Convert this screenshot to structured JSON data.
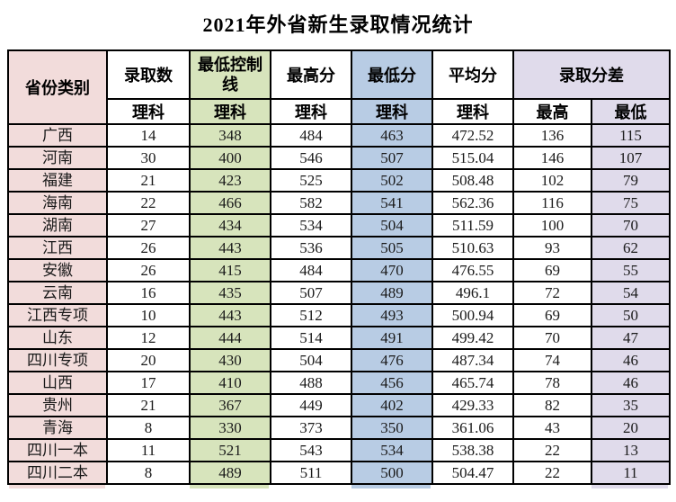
{
  "title": "2021年外省新生录取情况统计",
  "colors": {
    "province_column": "#f2dcdb",
    "control_line_column": "#d7e4bc",
    "lowest_score_column": "#b8cce4",
    "score_diff_column": "#e0dbeb",
    "grid_border": "#000000"
  },
  "table": {
    "header": {
      "province": "省份类别",
      "admitted": "录取数",
      "control_line": "最低控制线",
      "highest": "最高分",
      "lowest": "最低分",
      "average": "平均分",
      "score_diff": "录取分差",
      "sub_science": "理科",
      "sub_high": "最高",
      "sub_low": "最低"
    },
    "rows": [
      {
        "province": "广西",
        "admitted": "14",
        "control_line": "348",
        "highest": "484",
        "lowest": "463",
        "average": "472.52",
        "diff_high": "136",
        "diff_low": "115"
      },
      {
        "province": "河南",
        "admitted": "30",
        "control_line": "400",
        "highest": "546",
        "lowest": "507",
        "average": "515.04",
        "diff_high": "146",
        "diff_low": "107"
      },
      {
        "province": "福建",
        "admitted": "21",
        "control_line": "423",
        "highest": "525",
        "lowest": "502",
        "average": "508.48",
        "diff_high": "102",
        "diff_low": "79"
      },
      {
        "province": "海南",
        "admitted": "22",
        "control_line": "466",
        "highest": "582",
        "lowest": "541",
        "average": "562.36",
        "diff_high": "116",
        "diff_low": "75"
      },
      {
        "province": "湖南",
        "admitted": "27",
        "control_line": "434",
        "highest": "534",
        "lowest": "504",
        "average": "511.59",
        "diff_high": "100",
        "diff_low": "70"
      },
      {
        "province": "江西",
        "admitted": "26",
        "control_line": "443",
        "highest": "536",
        "lowest": "505",
        "average": "510.63",
        "diff_high": "93",
        "diff_low": "62"
      },
      {
        "province": "安徽",
        "admitted": "26",
        "control_line": "415",
        "highest": "484",
        "lowest": "470",
        "average": "476.55",
        "diff_high": "69",
        "diff_low": "55"
      },
      {
        "province": "云南",
        "admitted": "16",
        "control_line": "435",
        "highest": "507",
        "lowest": "489",
        "average": "496.1",
        "diff_high": "72",
        "diff_low": "54"
      },
      {
        "province": "江西专项",
        "admitted": "10",
        "control_line": "443",
        "highest": "512",
        "lowest": "493",
        "average": "500.94",
        "diff_high": "69",
        "diff_low": "50"
      },
      {
        "province": "山东",
        "admitted": "12",
        "control_line": "444",
        "highest": "514",
        "lowest": "491",
        "average": "499.42",
        "diff_high": "70",
        "diff_low": "47"
      },
      {
        "province": "四川专项",
        "admitted": "20",
        "control_line": "430",
        "highest": "504",
        "lowest": "476",
        "average": "487.34",
        "diff_high": "74",
        "diff_low": "46"
      },
      {
        "province": "山西",
        "admitted": "17",
        "control_line": "410",
        "highest": "488",
        "lowest": "456",
        "average": "465.74",
        "diff_high": "78",
        "diff_low": "46"
      },
      {
        "province": "贵州",
        "admitted": "21",
        "control_line": "367",
        "highest": "449",
        "lowest": "402",
        "average": "429.33",
        "diff_high": "82",
        "diff_low": "35"
      },
      {
        "province": "青海",
        "admitted": "8",
        "control_line": "330",
        "highest": "373",
        "lowest": "350",
        "average": "361.06",
        "diff_high": "43",
        "diff_low": "20"
      },
      {
        "province": "四川一本",
        "admitted": "11",
        "control_line": "521",
        "highest": "543",
        "lowest": "534",
        "average": "538.38",
        "diff_high": "22",
        "diff_low": "13"
      },
      {
        "province": "四川二本",
        "admitted": "8",
        "control_line": "489",
        "highest": "511",
        "lowest": "500",
        "average": "504.47",
        "diff_high": "22",
        "diff_low": "11"
      }
    ]
  }
}
